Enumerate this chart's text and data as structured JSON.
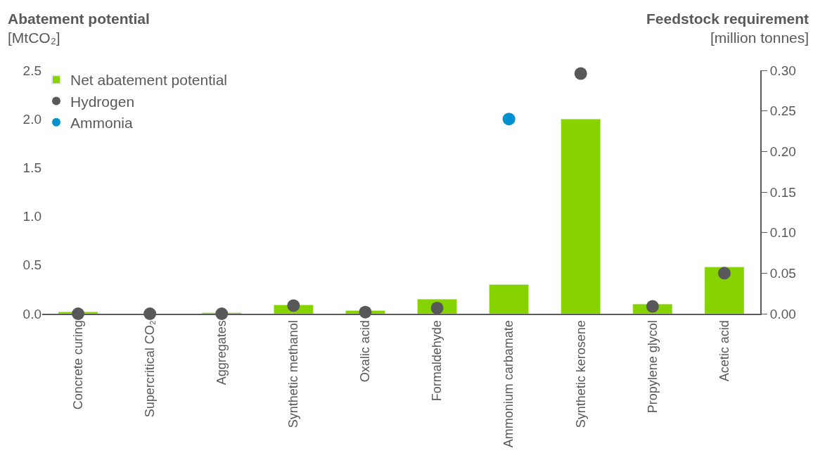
{
  "chart_data": {
    "type": "bar",
    "ylabel": "Abatement potential\n[MtCO₂]",
    "y2label": "Feedstock requirement\n[million tonnes]",
    "categories": [
      "Concrete curing",
      "Supercritical CO₂",
      "Aggregates",
      "Synthetic methanol",
      "Oxalic acid",
      "Formaldehyde",
      "Ammonium carbamate",
      "Synthetic kerosene",
      "Propylene glycol",
      "Acetic acid"
    ],
    "series": [
      {
        "name": "Net abatement potential",
        "color": "#87d300",
        "values": [
          0.02,
          null,
          0.01,
          0.09,
          0.033,
          0.15,
          0.3,
          2.0,
          0.1,
          0.48
        ]
      },
      {
        "name": "Hydrogen",
        "type": "scatter",
        "axis": "y2",
        "color": "#58585a",
        "values": [
          0,
          0,
          0,
          0.01,
          0.002,
          0.007,
          null,
          0.296,
          0.009,
          0.05
        ]
      },
      {
        "name": "Ammonia",
        "type": "scatter",
        "axis": "y2",
        "color": "#0091cf",
        "values": [
          null,
          null,
          null,
          null,
          null,
          null,
          0.24,
          null,
          null,
          null
        ]
      }
    ],
    "ylim": [
      0,
      2.5
    ],
    "yticks": [
      {
        "value": 0,
        "label": "0.0"
      },
      {
        "value": 0.5,
        "label": "0.5"
      },
      {
        "value": 1,
        "label": "1.0"
      },
      {
        "value": 1.5,
        "label": "1.5"
      },
      {
        "value": 2,
        "label": "2.0"
      },
      {
        "value": 2.5,
        "label": "2.5"
      }
    ],
    "y2lim": [
      0,
      0.3
    ],
    "y2ticks": [
      {
        "value": 0,
        "label": "0.00"
      },
      {
        "value": 0.05,
        "label": "0.05"
      },
      {
        "value": 0.1,
        "label": "0.10"
      },
      {
        "value": 0.15,
        "label": "0.15"
      },
      {
        "value": 0.2,
        "label": "0.20"
      },
      {
        "value": 0.25,
        "label": "0.25"
      },
      {
        "value": 0.3,
        "label": "0.30"
      }
    ],
    "marker": "circle",
    "legend": "top left"
  }
}
